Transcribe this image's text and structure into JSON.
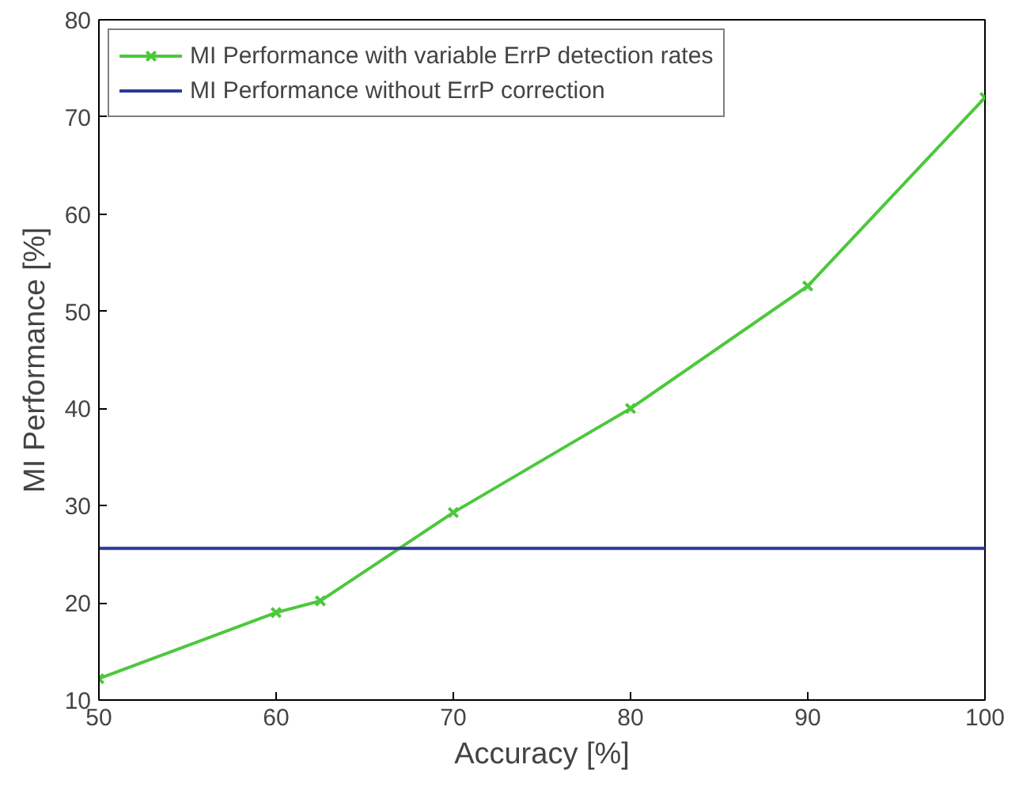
{
  "chart_data": {
    "type": "line",
    "xlabel": "Accuracy [%]",
    "ylabel": "MI Performance [%]",
    "xlim": [
      50,
      100
    ],
    "ylim": [
      10,
      80
    ],
    "xticks": [
      50,
      60,
      70,
      80,
      90,
      100
    ],
    "yticks": [
      10,
      20,
      30,
      40,
      50,
      60,
      70,
      80
    ],
    "grid": false,
    "legend": "top left",
    "series": [
      {
        "name": "MI Performance with variable ErrP detection rates",
        "color": "#4cc83c",
        "marker": "cross",
        "x": [
          50,
          60,
          62.5,
          70,
          80,
          90,
          100
        ],
        "values": [
          12.2,
          19,
          20.2,
          29.3,
          40,
          52.6,
          72
        ]
      },
      {
        "name": "MI Performance without ErrP correction",
        "color": "#2b3a96",
        "marker": "none",
        "x": [
          50,
          100
        ],
        "values": [
          25.6,
          25.6
        ]
      }
    ]
  }
}
